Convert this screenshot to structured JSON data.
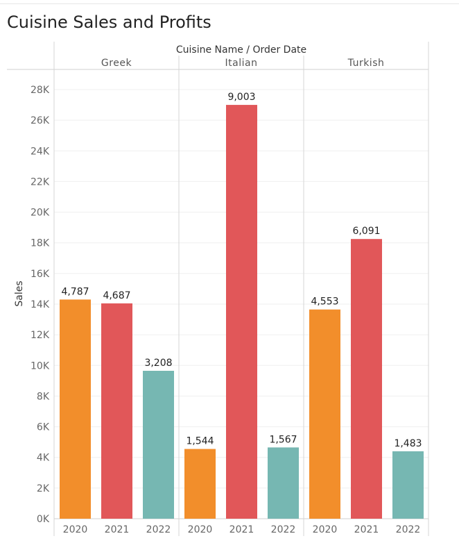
{
  "page": {
    "title": "Cuisine Sales and Profits"
  },
  "chart_data": {
    "type": "bar",
    "title": "Cuisine Sales and Profits",
    "header_title": "Cuisine Name  /  Order Date",
    "ylabel": "Sales",
    "ylim": [
      0,
      29000
    ],
    "yticks": [
      0,
      2000,
      4000,
      6000,
      8000,
      10000,
      12000,
      14000,
      16000,
      18000,
      20000,
      22000,
      24000,
      26000,
      28000
    ],
    "ytick_labels": [
      "0K",
      "2K",
      "4K",
      "6K",
      "8K",
      "10K",
      "12K",
      "14K",
      "16K",
      "18K",
      "20K",
      "22K",
      "24K",
      "26K",
      "28K"
    ],
    "years": [
      "2020",
      "2021",
      "2022"
    ],
    "colors": {
      "2020": "#F28E2B",
      "2021": "#E15759",
      "2022": "#76B7B2"
    },
    "groups": [
      {
        "name": "Greek",
        "sales": [
          14300,
          14050,
          9650
        ],
        "labels": [
          "4,787",
          "4,687",
          "3,208"
        ]
      },
      {
        "name": "Italian",
        "sales": [
          4550,
          27000,
          4650
        ],
        "labels": [
          "1,544",
          "9,003",
          "1,567"
        ]
      },
      {
        "name": "Turkish",
        "sales": [
          13650,
          18250,
          4400
        ],
        "labels": [
          "4,553",
          "6,091",
          "1,483"
        ]
      }
    ]
  }
}
